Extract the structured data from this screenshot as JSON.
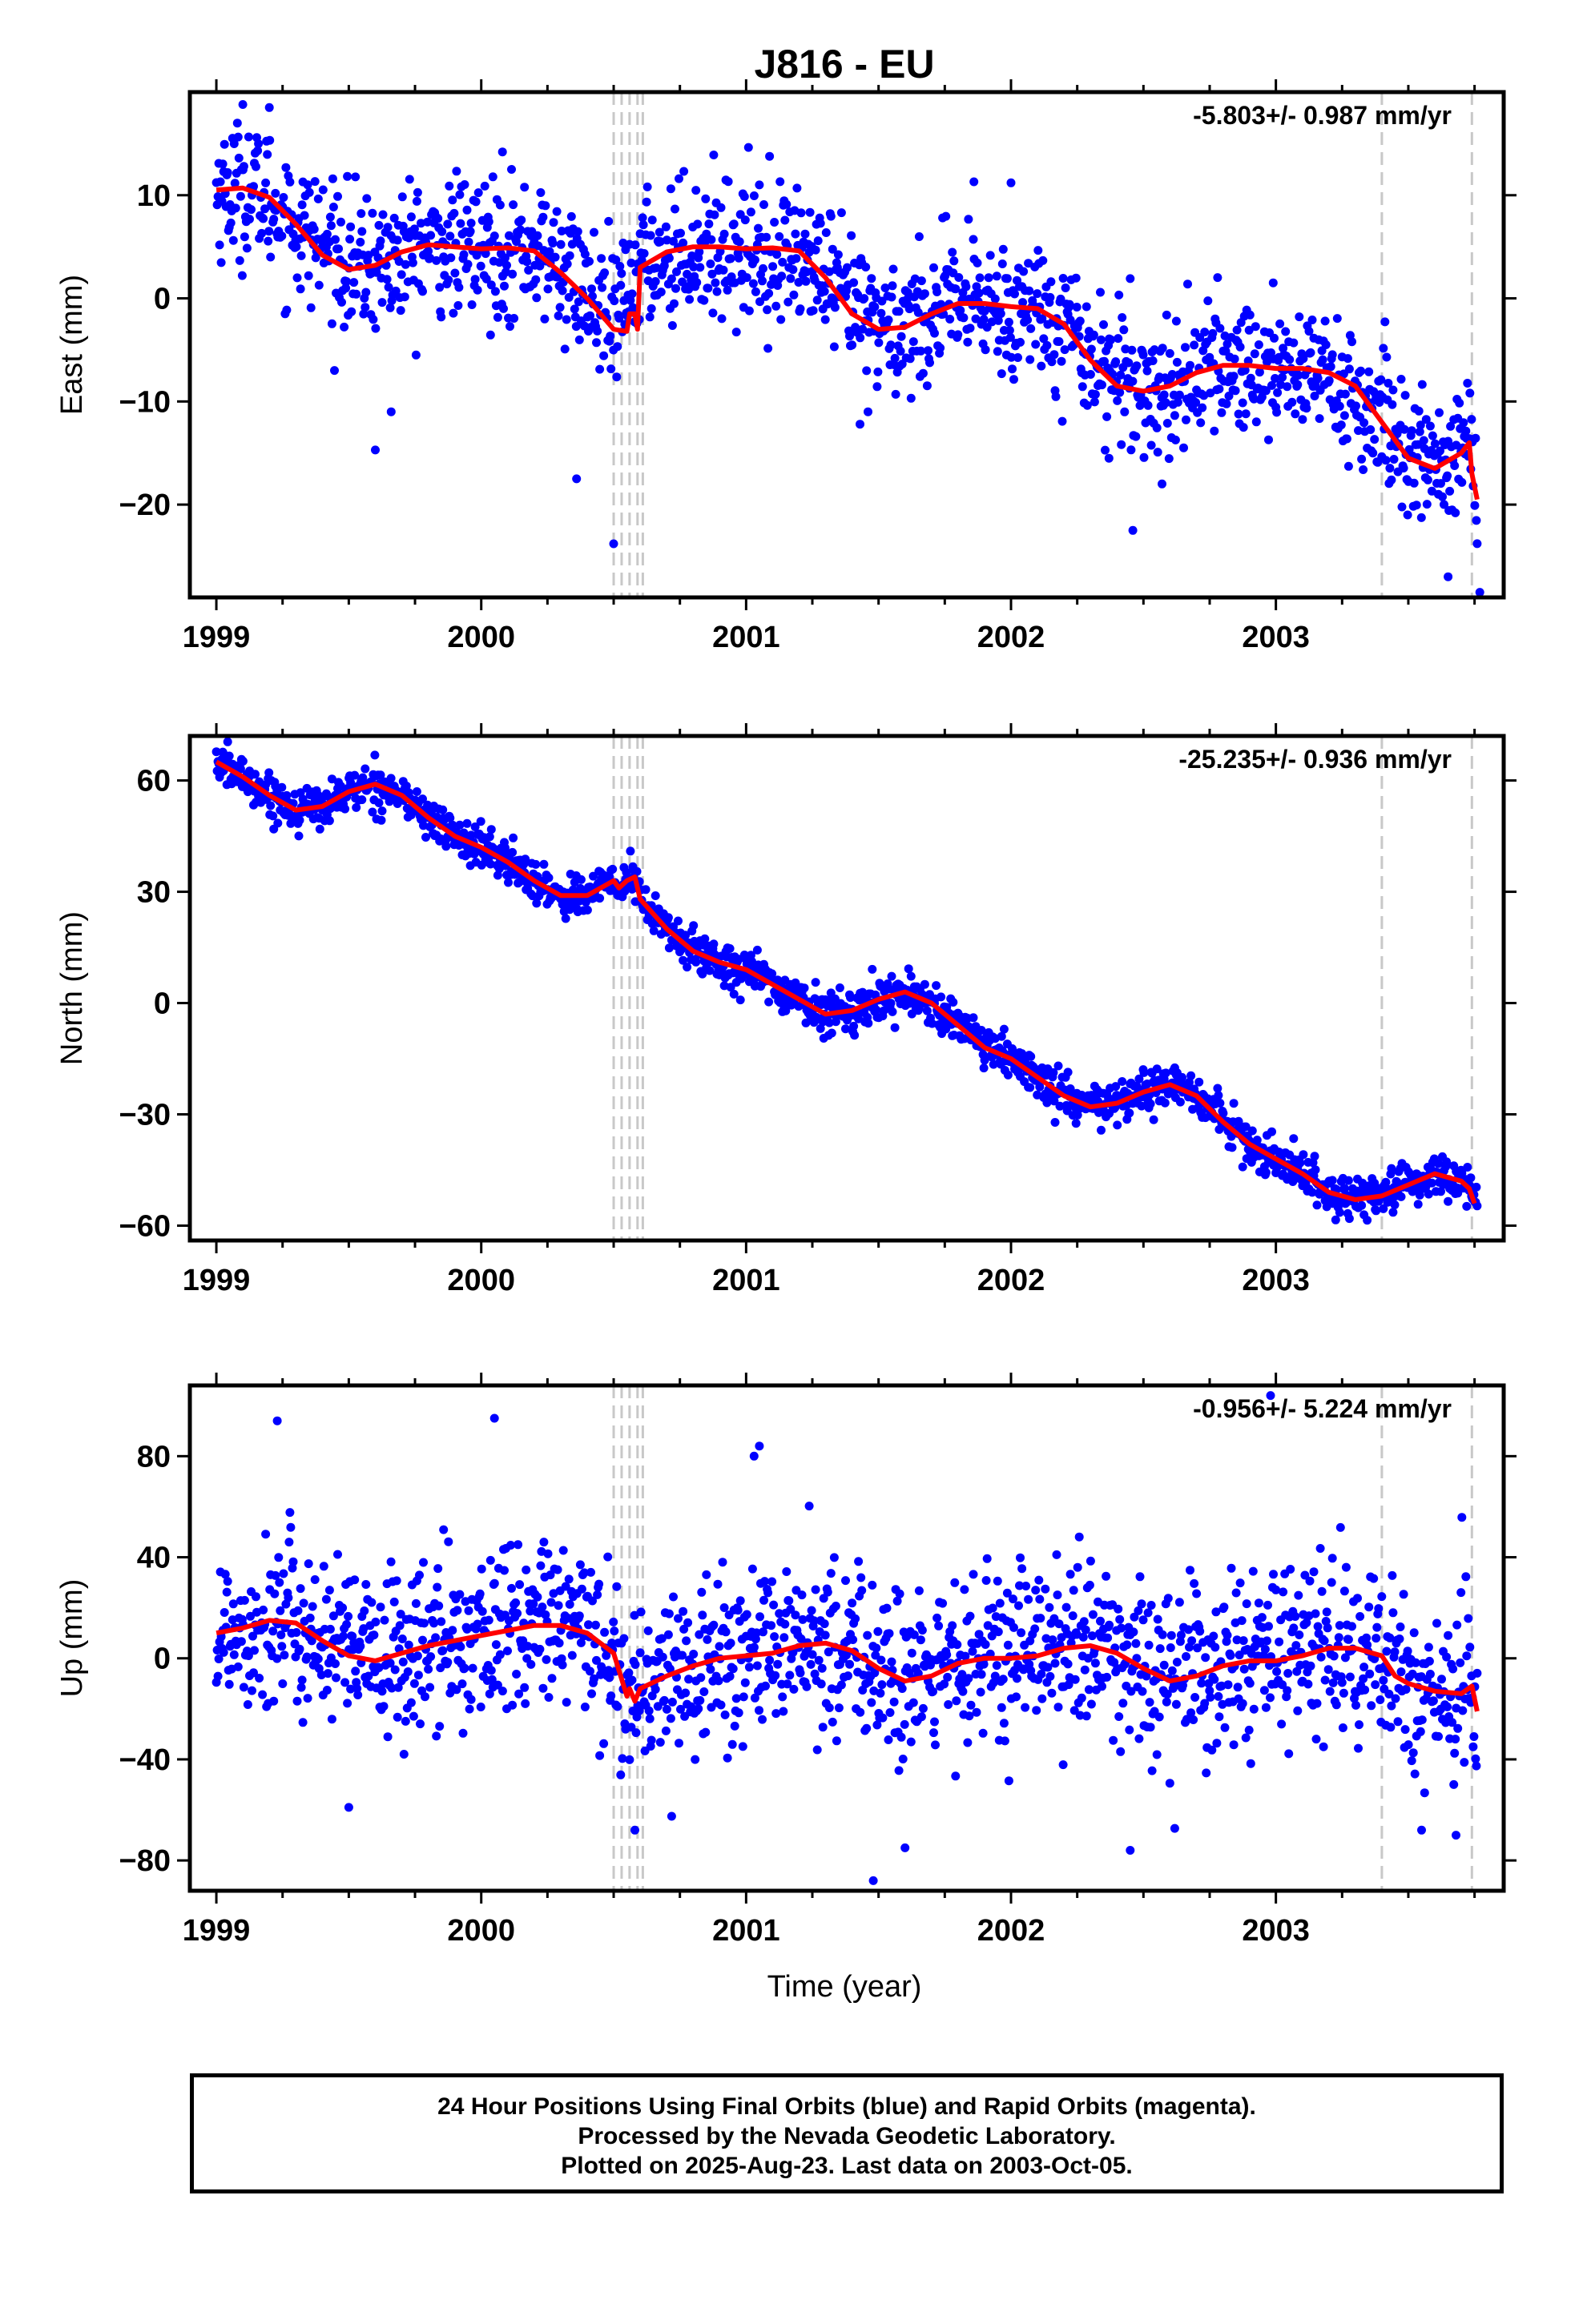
{
  "title": "J816 - EU",
  "xlabel": "Time (year)",
  "caption": {
    "line1": "24 Hour Positions Using Final Orbits (blue) and Rapid Orbits (magenta).",
    "line2": "Processed by the Nevada Geodetic Laboratory.",
    "line3": "Plotted on 2025-Aug-23. Last data on 2003-Oct-05."
  },
  "colors": {
    "points": "#0000ff",
    "fit": "#ff0000",
    "events": "#c8c8c8",
    "frame": "#000000"
  },
  "chart_data": [
    {
      "type": "scatter",
      "id": "east",
      "ylabel": "East (mm)",
      "rate_label": "-5.803+/- 0.987 mm/yr",
      "xlim": [
        1998.9,
        2003.86
      ],
      "ylim": [
        -29,
        20
      ],
      "xticks": [
        1999,
        2000,
        2001,
        2002,
        2003
      ],
      "xtick_labels": [
        "1999",
        "2000",
        "2001",
        "2002",
        "2003"
      ],
      "yticks": [
        -20,
        -10,
        0,
        10
      ],
      "ytick_labels": [
        "−20",
        "−10",
        "0",
        "10"
      ],
      "event_lines": [
        2000.5,
        2000.53,
        2000.56,
        2000.59,
        2000.61,
        2003.4,
        2003.74
      ],
      "fit": {
        "x": [
          1999.0,
          1999.1,
          1999.2,
          1999.3,
          1999.4,
          1999.5,
          1999.6,
          1999.7,
          1999.8,
          1999.9,
          2000.0,
          2000.1,
          2000.2,
          2000.3,
          2000.4,
          2000.5,
          2000.55,
          2000.56,
          2000.58,
          2000.59,
          2000.6,
          2000.7,
          2000.8,
          2000.9,
          2001.0,
          2001.1,
          2001.2,
          2001.3,
          2001.4,
          2001.5,
          2001.6,
          2001.7,
          2001.8,
          2001.9,
          2002.0,
          2002.1,
          2002.2,
          2002.3,
          2002.4,
          2002.5,
          2002.6,
          2002.7,
          2002.8,
          2002.9,
          2003.0,
          2003.1,
          2003.2,
          2003.3,
          2003.4,
          2003.5,
          2003.6,
          2003.7,
          2003.73,
          2003.74,
          2003.76
        ],
        "y": [
          10.5,
          10.7,
          9.8,
          7.2,
          4.2,
          2.8,
          3.2,
          4.5,
          5.2,
          5.0,
          4.8,
          4.9,
          4.6,
          2.5,
          0.0,
          -3.0,
          -3.2,
          -1.5,
          -1.5,
          -3.0,
          3.0,
          4.5,
          5.0,
          5.0,
          4.8,
          4.9,
          4.6,
          2.0,
          -1.5,
          -3.0,
          -2.8,
          -1.5,
          -0.5,
          -0.5,
          -0.8,
          -1.0,
          -2.5,
          -6.0,
          -8.5,
          -9.0,
          -8.5,
          -7.2,
          -6.5,
          -6.5,
          -6.8,
          -6.8,
          -7.2,
          -8.5,
          -12.0,
          -15.5,
          -16.5,
          -15.0,
          -14.0,
          -17.0,
          -19.5
        ]
      },
      "trend": [
        [
          1999.0,
          10.5
        ],
        [
          1999.15,
          10.5
        ],
        [
          1999.3,
          7.0
        ],
        [
          1999.55,
          2.8
        ],
        [
          1999.8,
          5.0
        ],
        [
          2000.2,
          4.8
        ],
        [
          2000.35,
          2.0
        ],
        [
          2000.5,
          -3.0
        ],
        [
          2000.6,
          3.5
        ],
        [
          2000.8,
          5.0
        ],
        [
          2001.2,
          4.5
        ],
        [
          2001.35,
          0.0
        ],
        [
          2001.55,
          -3.0
        ],
        [
          2001.8,
          -0.5
        ],
        [
          2002.15,
          -1.2
        ],
        [
          2002.35,
          -6.5
        ],
        [
          2002.55,
          -9.0
        ],
        [
          2002.8,
          -6.5
        ],
        [
          2003.2,
          -7.3
        ],
        [
          2003.4,
          -12.5
        ],
        [
          2003.6,
          -16.5
        ],
        [
          2003.74,
          -14.0
        ],
        [
          2003.76,
          -19.5
        ]
      ],
      "spread": 3.3,
      "outliers": [
        [
          1999.6,
          -14.7
        ],
        [
          1999.66,
          -11
        ],
        [
          2000.36,
          -17.5
        ],
        [
          2000.5,
          -23.8
        ],
        [
          2001.43,
          -12.2
        ],
        [
          2001.46,
          -11
        ],
        [
          2002.37,
          -15.5
        ],
        [
          2002.46,
          -22.5
        ],
        [
          2002.57,
          -18
        ],
        [
          2003.65,
          -27
        ],
        [
          2003.77,
          -28.5
        ],
        [
          1999.1,
          18.8
        ],
        [
          1999.2,
          18.5
        ],
        [
          2000.08,
          14.2
        ],
        [
          2001.05,
          11
        ],
        [
          2001.86,
          11.3
        ],
        [
          2002.0,
          11.2
        ],
        [
          2002.99,
          1.5
        ]
      ]
    },
    {
      "type": "scatter",
      "id": "north",
      "ylabel": "North (mm)",
      "rate_label": "-25.235+/- 0.936 mm/yr",
      "xlim": [
        1998.9,
        2003.86
      ],
      "ylim": [
        -64,
        72
      ],
      "xticks": [
        1999,
        2000,
        2001,
        2002,
        2003
      ],
      "xtick_labels": [
        "1999",
        "2000",
        "2001",
        "2002",
        "2003"
      ],
      "yticks": [
        -60,
        -30,
        0,
        30,
        60
      ],
      "ytick_labels": [
        "−60",
        "−30",
        "0",
        "30",
        "60"
      ],
      "event_lines": [
        2000.5,
        2000.53,
        2000.56,
        2000.59,
        2000.61,
        2003.4,
        2003.74
      ],
      "fit": {
        "x": [
          1999.0,
          1999.1,
          1999.2,
          1999.3,
          1999.4,
          1999.5,
          1999.6,
          1999.7,
          1999.8,
          1999.9,
          2000.0,
          2000.1,
          2000.2,
          2000.3,
          2000.4,
          2000.5,
          2000.52,
          2000.55,
          2000.58,
          2000.6,
          2000.7,
          2000.8,
          2000.9,
          2001.0,
          2001.1,
          2001.2,
          2001.3,
          2001.4,
          2001.5,
          2001.6,
          2001.7,
          2001.8,
          2001.9,
          2002.0,
          2002.1,
          2002.2,
          2002.3,
          2002.4,
          2002.5,
          2002.6,
          2002.7,
          2002.8,
          2002.9,
          2003.0,
          2003.1,
          2003.2,
          2003.3,
          2003.4,
          2003.5,
          2003.6,
          2003.7,
          2003.73,
          2003.75
        ],
        "y": [
          65,
          61,
          56,
          52,
          53,
          57,
          59,
          56,
          50,
          45,
          42,
          38,
          33,
          29,
          29,
          33,
          31,
          33,
          34,
          28,
          20,
          14,
          11,
          9,
          5,
          1,
          -3,
          -2,
          1,
          3,
          0,
          -6,
          -12,
          -15,
          -20,
          -25,
          -28,
          -27,
          -24,
          -22,
          -25,
          -32,
          -38,
          -42,
          -46,
          -51,
          -53,
          -52,
          -49,
          -46,
          -48,
          -50,
          -54
        ]
      },
      "spread": 2.8,
      "outliers": []
    },
    {
      "type": "scatter",
      "id": "up",
      "ylabel": "Up (mm)",
      "rate_label": "-0.956+/- 5.224 mm/yr",
      "xlim": [
        1998.9,
        2003.86
      ],
      "ylim": [
        -92,
        108
      ],
      "xticks": [
        1999,
        2000,
        2001,
        2002,
        2003
      ],
      "xtick_labels": [
        "1999",
        "2000",
        "2001",
        "2002",
        "2003"
      ],
      "yticks": [
        -80,
        -40,
        0,
        40,
        80
      ],
      "ytick_labels": [
        "−80",
        "−40",
        "0",
        "40",
        "80"
      ],
      "event_lines": [
        2000.5,
        2000.53,
        2000.56,
        2000.59,
        2000.61,
        2003.4,
        2003.74
      ],
      "fit": {
        "x": [
          1999.0,
          1999.1,
          1999.2,
          1999.3,
          1999.4,
          1999.5,
          1999.6,
          1999.7,
          1999.8,
          1999.9,
          2000.0,
          2000.1,
          2000.2,
          2000.3,
          2000.4,
          2000.5,
          2000.55,
          2000.56,
          2000.58,
          2000.6,
          2000.7,
          2000.8,
          2000.9,
          2001.0,
          2001.1,
          2001.2,
          2001.3,
          2001.4,
          2001.5,
          2001.6,
          2001.7,
          2001.8,
          2001.9,
          2002.0,
          2002.1,
          2002.2,
          2002.3,
          2002.4,
          2002.5,
          2002.6,
          2002.7,
          2002.8,
          2002.9,
          2003.0,
          2003.1,
          2003.2,
          2003.3,
          2003.4,
          2003.45,
          2003.5,
          2003.6,
          2003.7,
          2003.74,
          2003.76
        ],
        "y": [
          10,
          12,
          15,
          14,
          7,
          1,
          -1,
          2,
          5,
          7,
          9,
          11,
          13,
          13,
          10,
          2,
          -15,
          -12,
          -17,
          -12,
          -7,
          -3,
          0,
          1,
          2,
          5,
          6,
          3,
          -4,
          -9,
          -7,
          -2,
          0,
          0,
          1,
          4,
          5,
          2,
          -4,
          -9,
          -7,
          -3,
          -1,
          -1,
          1,
          4,
          4,
          1,
          -7,
          -10,
          -13,
          -14,
          -11,
          -21
        ]
      },
      "spread": 17,
      "outliers": [
        [
          2001.03,
          80
        ],
        [
          2001.05,
          84
        ],
        [
          2000.05,
          95
        ],
        [
          2002.98,
          104
        ],
        [
          1999.23,
          94
        ],
        [
          2001.48,
          -88
        ],
        [
          2002.45,
          -76
        ],
        [
          1999.5,
          -59
        ],
        [
          2001.6,
          -75
        ],
        [
          2003.55,
          -68
        ],
        [
          2003.68,
          -70
        ],
        [
          2000.58,
          -68
        ]
      ]
    }
  ]
}
